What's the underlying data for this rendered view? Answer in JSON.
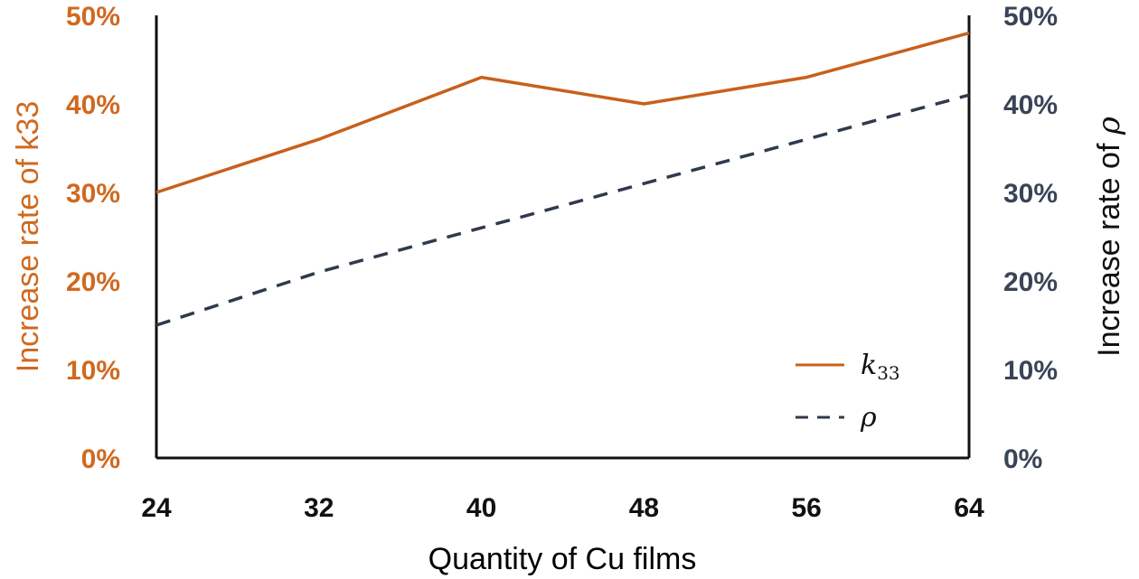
{
  "chart_data": {
    "type": "line",
    "x": [
      24,
      32,
      40,
      48,
      56,
      64
    ],
    "xlabel": "Quantity of Cu films",
    "ylabel_left": "Increase rate of k33",
    "ylabel_right_prefix": "Increase rate of ",
    "ylabel_right_symbol": "ρ",
    "y_left_ticks": [
      "0%",
      "10%",
      "20%",
      "30%",
      "40%",
      "50%"
    ],
    "y_right_ticks": [
      "0%",
      "10%",
      "20%",
      "30%",
      "40%",
      "50%"
    ],
    "ylim_left": [
      0,
      50
    ],
    "ylim_right": [
      0,
      50
    ],
    "grid": false,
    "legend_position": "bottom-right",
    "series": [
      {
        "name": "k33",
        "name_main": "k",
        "name_sub": "33",
        "axis": "left",
        "style": "solid",
        "color": "#c8601c",
        "values": [
          30,
          36,
          43,
          40,
          43,
          48
        ]
      },
      {
        "name": "ρ",
        "axis": "right",
        "style": "dashed",
        "color": "#2f3a4c",
        "values": [
          15,
          21,
          26,
          31,
          36,
          41
        ]
      }
    ],
    "colors": {
      "left_axis": "#d0691f",
      "right_axis": "#3a4457",
      "axis_line": "#111111"
    }
  }
}
